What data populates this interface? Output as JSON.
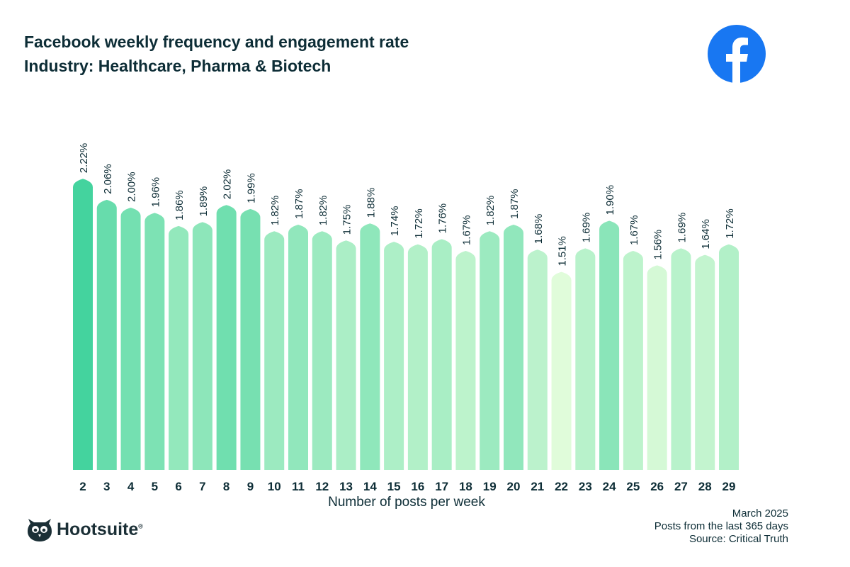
{
  "header": {
    "title": "Facebook weekly frequency and engagement rate",
    "subtitle": "Industry: Healthcare, Pharma & Biotech"
  },
  "icons": {
    "brand": "facebook-logo-icon",
    "footer": "hootsuite-owl-logo"
  },
  "colors": {
    "brand": "#1877F2",
    "bar_high": "#44D39E",
    "bar_low": "#E0FCDA",
    "text": "#0D2D36"
  },
  "chart_data": {
    "type": "bar",
    "title": "Facebook weekly frequency and engagement rate",
    "subtitle": "Industry: Healthcare, Pharma & Biotech",
    "xlabel": "Number of posts per week",
    "ylabel": "",
    "categories": [
      "2",
      "3",
      "4",
      "5",
      "6",
      "7",
      "8",
      "9",
      "10",
      "11",
      "12",
      "13",
      "14",
      "15",
      "16",
      "17",
      "18",
      "19",
      "20",
      "21",
      "22",
      "23",
      "24",
      "25",
      "26",
      "27",
      "28",
      "29"
    ],
    "values": [
      2.22,
      2.06,
      2.0,
      1.96,
      1.86,
      1.89,
      2.02,
      1.99,
      1.82,
      1.87,
      1.82,
      1.75,
      1.88,
      1.74,
      1.72,
      1.76,
      1.67,
      1.82,
      1.87,
      1.68,
      1.51,
      1.69,
      1.9,
      1.67,
      1.56,
      1.69,
      1.64,
      1.72
    ],
    "data_labels": [
      "2.22%",
      "2.06%",
      "2.00%",
      "1.96%",
      "1.86%",
      "1.89%",
      "2.02%",
      "1.99%",
      "1.82%",
      "1.87%",
      "1.82%",
      "1.75%",
      "1.88%",
      "1.74%",
      "1.72%",
      "1.76%",
      "1.67%",
      "1.82%",
      "1.87%",
      "1.68%",
      "1.51%",
      "1.69%",
      "1.90%",
      "1.67%",
      "1.56%",
      "1.69%",
      "1.64%",
      "1.72%"
    ],
    "unit": "%",
    "ylim": [
      0,
      2.22
    ],
    "grid": false
  },
  "footer": {
    "brand": "Hootsuite",
    "date": "March 2025",
    "range": "Posts from the last 365 days",
    "source": "Source: Critical Truth"
  }
}
